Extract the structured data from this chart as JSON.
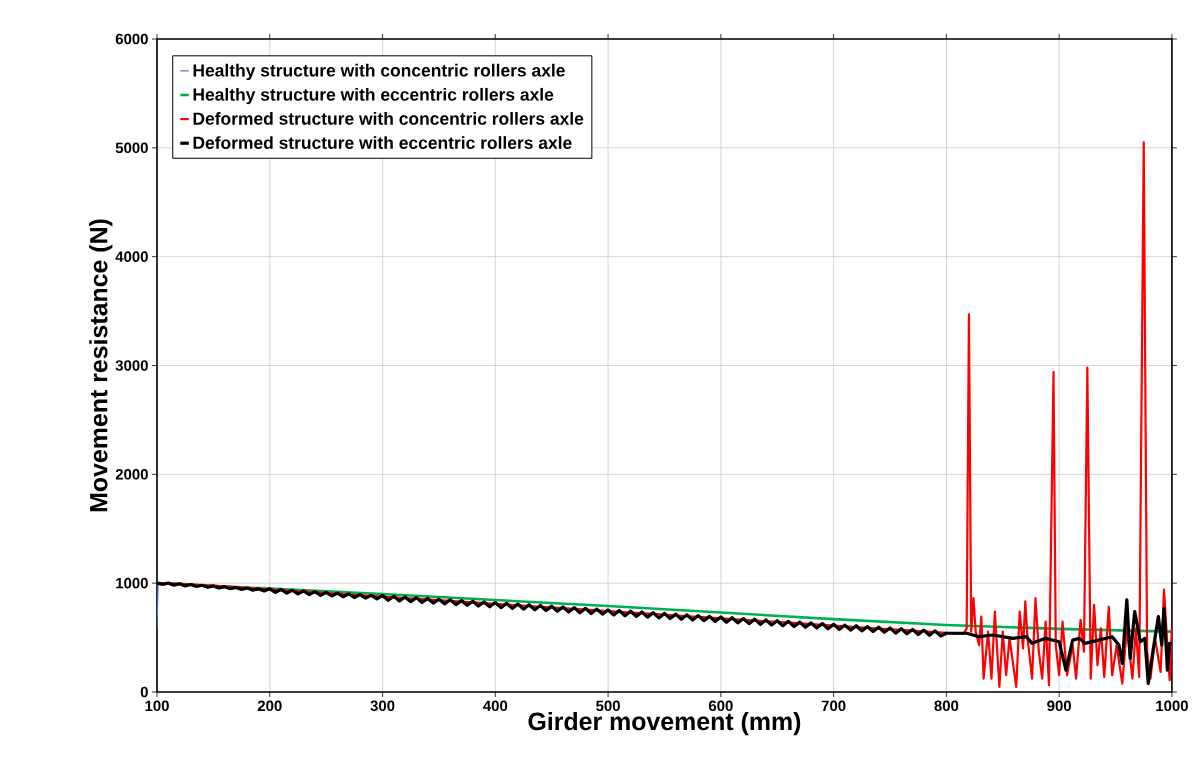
{
  "chart_data": {
    "type": "line",
    "xlabel": "Girder movement (mm)",
    "ylabel": "Movement resistance  (N)",
    "xlim": [
      100,
      1000
    ],
    "xticks": [
      100,
      200,
      300,
      400,
      500,
      600,
      700,
      800,
      900,
      1000
    ],
    "ylim": [
      0,
      6000
    ],
    "yticks": [
      0,
      1000,
      2000,
      3000,
      4000,
      5000,
      6000
    ],
    "grid": true,
    "legend": "top left",
    "marker": "none",
    "line_style": "solid",
    "series": [
      {
        "name": "Healthy structure with concentric rollers  axle",
        "color": "#4472c4",
        "x": [
          100,
          101
        ],
        "values": [
          600,
          1000
        ]
      },
      {
        "name": "Healthy structure with eccentric rollers axle",
        "color": "#00b050",
        "x": [
          100,
          200,
          300,
          400,
          500,
          600,
          700,
          800,
          900,
          1000
        ],
        "values": [
          1000,
          950,
          900,
          845,
          790,
          730,
          670,
          615,
          580,
          555
        ]
      },
      {
        "name": "Deformed structure with concentric rollers axle",
        "color": "#ff0000",
        "x": [
          100,
          120,
          140,
          160,
          180,
          200,
          220,
          240,
          260,
          280,
          300,
          320,
          340,
          360,
          380,
          400,
          420,
          440,
          460,
          480,
          500,
          520,
          540,
          560,
          580,
          600,
          620,
          640,
          660,
          680,
          700,
          720,
          740,
          760,
          780,
          800,
          815,
          818,
          820,
          822,
          824,
          826,
          829,
          831,
          833,
          837,
          840,
          843,
          847,
          850,
          853,
          856,
          862,
          865,
          868,
          870,
          872,
          876,
          879,
          882,
          885,
          888,
          891,
          895,
          897,
          900,
          903,
          907,
          912,
          915,
          919,
          922,
          925,
          928,
          931,
          934,
          937,
          940,
          944,
          947,
          951,
          956,
          960,
          965,
          968,
          971,
          975,
          978,
          981,
          985,
          990,
          993,
          996,
          998,
          1000
        ],
        "values": [
          1000,
          997,
          983,
          970,
          957,
          943,
          930,
          917,
          903,
          890,
          877,
          863,
          850,
          837,
          823,
          810,
          797,
          783,
          770,
          757,
          743,
          730,
          717,
          703,
          690,
          677,
          663,
          650,
          637,
          623,
          610,
          597,
          583,
          570,
          557,
          543,
          533,
          585,
          3470,
          554,
          862,
          554,
          431,
          693,
          123,
          554,
          123,
          739,
          46,
          554,
          154,
          493,
          46,
          739,
          400,
          832,
          493,
          123,
          862,
          370,
          123,
          647,
          62,
          2940,
          431,
          154,
          647,
          154,
          431,
          123,
          662,
          370,
          2980,
          123,
          801,
          246,
          585,
          139,
          785,
          154,
          431,
          77,
          585,
          123,
          585,
          139,
          5050,
          370,
          123,
          493,
          185,
          940,
          431,
          108,
          585
        ]
      },
      {
        "name": "Deformed structure with eccentric rollers axle",
        "color": "#000000",
        "x": [
          100,
          105,
          110,
          115,
          120,
          125,
          130,
          135,
          140,
          145,
          150,
          155,
          160,
          165,
          170,
          175,
          180,
          185,
          190,
          195,
          200,
          205,
          210,
          215,
          220,
          225,
          230,
          235,
          240,
          245,
          250,
          255,
          260,
          265,
          270,
          275,
          280,
          285,
          290,
          295,
          300,
          305,
          310,
          315,
          320,
          325,
          330,
          335,
          340,
          345,
          350,
          355,
          360,
          365,
          370,
          375,
          380,
          385,
          390,
          395,
          400,
          405,
          410,
          415,
          420,
          425,
          430,
          435,
          440,
          445,
          450,
          455,
          460,
          465,
          470,
          475,
          480,
          485,
          490,
          495,
          500,
          505,
          510,
          515,
          520,
          525,
          530,
          535,
          540,
          545,
          550,
          555,
          560,
          565,
          570,
          575,
          580,
          585,
          590,
          595,
          600,
          605,
          610,
          615,
          620,
          625,
          630,
          635,
          640,
          645,
          650,
          655,
          660,
          665,
          670,
          675,
          680,
          685,
          690,
          695,
          700,
          705,
          710,
          715,
          720,
          725,
          730,
          735,
          740,
          745,
          750,
          755,
          760,
          765,
          770,
          775,
          780,
          785,
          790,
          795,
          800,
          818,
          829,
          841,
          859,
          871,
          876,
          888,
          900,
          906,
          912,
          918,
          923,
          935,
          947,
          953,
          956,
          960,
          963,
          967,
          972,
          976,
          979,
          984,
          988,
          991,
          993,
          996,
          998,
          1000
        ],
        "values": [
          1000,
          989,
          1001,
          982,
          995,
          975,
          988,
          969,
          981,
          962,
          975,
          955,
          968,
          949,
          961,
          942,
          955,
          935,
          948,
          929,
          948,
          915,
          942,
          908,
          935,
          902,
          928,
          895,
          922,
          888,
          915,
          882,
          908,
          875,
          902,
          868,
          895,
          862,
          888,
          855,
          887,
          843,
          880,
          837,
          873,
          830,
          867,
          823,
          860,
          817,
          853,
          810,
          847,
          803,
          840,
          797,
          833,
          790,
          827,
          783,
          822,
          775,
          815,
          768,
          809,
          761,
          802,
          755,
          795,
          748,
          789,
          741,
          782,
          735,
          775,
          728,
          769,
          721,
          762,
          715,
          755,
          708,
          749,
          701,
          742,
          695,
          735,
          688,
          729,
          681,
          722,
          675,
          715,
          668,
          709,
          661,
          702,
          655,
          695,
          648,
          689,
          641,
          682,
          635,
          675,
          628,
          669,
          621,
          662,
          615,
          655,
          608,
          649,
          601,
          642,
          595,
          635,
          588,
          629,
          581,
          622,
          575,
          615,
          568,
          609,
          561,
          602,
          555,
          595,
          548,
          589,
          541,
          582,
          535,
          575,
          528,
          569,
          521,
          562,
          515,
          540,
          540,
          508,
          524,
          493,
          508,
          447,
          493,
          462,
          200,
          477,
          493,
          447,
          477,
          508,
          431,
          262,
          847,
          308,
          739,
          462,
          493,
          77,
          431,
          693,
          431,
          770,
          200,
          447,
          447
        ]
      }
    ]
  }
}
